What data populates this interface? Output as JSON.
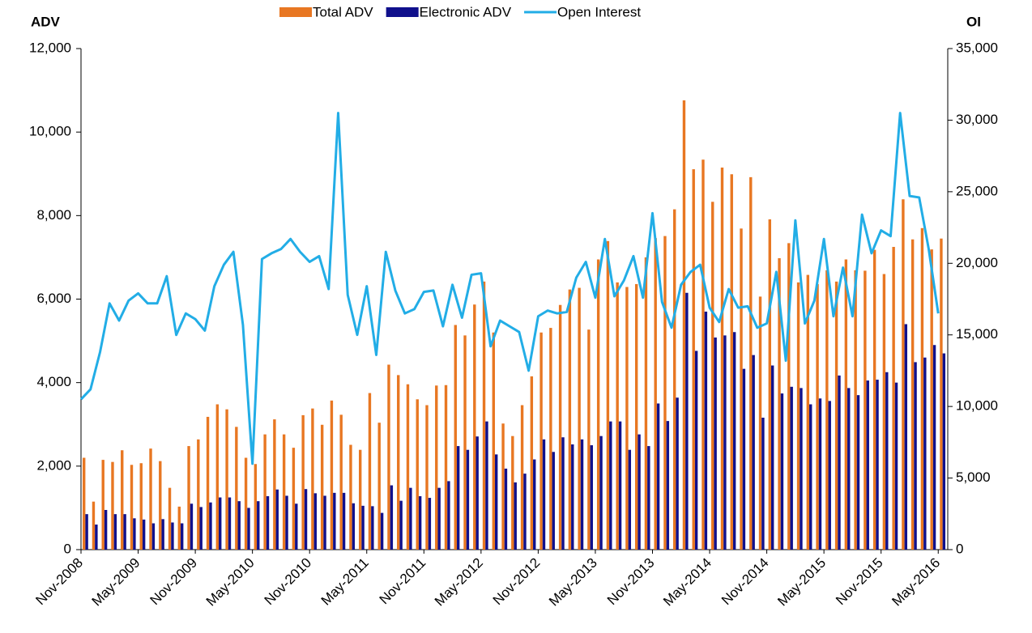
{
  "chart_data": {
    "type": "bar_line",
    "y_label": "ADV",
    "y2_label": "OI",
    "categories": [
      "Nov-2008",
      null,
      null,
      null,
      null,
      null,
      "May-2009",
      null,
      null,
      null,
      null,
      null,
      "Nov-2009",
      null,
      null,
      null,
      null,
      null,
      "May-2010",
      null,
      null,
      null,
      null,
      null,
      "Nov-2010",
      null,
      null,
      null,
      null,
      null,
      "May-2011",
      null,
      null,
      null,
      null,
      null,
      "Nov-2011",
      null,
      null,
      null,
      null,
      null,
      "May-2012",
      null,
      null,
      null,
      null,
      null,
      "Nov-2012",
      null,
      null,
      null,
      null,
      null,
      "May-2013",
      null,
      null,
      null,
      null,
      null,
      "Nov-2013",
      null,
      null,
      null,
      null,
      null,
      "May-2014",
      null,
      null,
      null,
      null,
      null,
      "Nov-2014",
      null,
      null,
      null,
      null,
      null,
      "May-2015",
      null,
      null,
      null,
      null,
      null,
      "Nov-2015",
      null,
      null,
      null,
      null,
      null,
      "May-2016"
    ],
    "series": [
      {
        "name": "Total ADV",
        "color": "#e87722",
        "kind": "bar",
        "values": [
          2200,
          1150,
          2150,
          2100,
          2380,
          2030,
          2070,
          2420,
          2120,
          1480,
          1030,
          2480,
          2640,
          3180,
          3480,
          3360,
          2940,
          2200,
          2050,
          2760,
          3120,
          2760,
          2440,
          3220,
          3380,
          2990,
          3570,
          3230,
          2510,
          2390,
          3750,
          3040,
          4430,
          4180,
          3960,
          3600,
          3460,
          3930,
          3940,
          5380,
          5130,
          5870,
          6420,
          5200,
          3020,
          2720,
          3460,
          4150,
          5200,
          5310,
          5860,
          6230,
          6270,
          5270,
          6950,
          7390,
          6400,
          6290,
          6360,
          7000,
          7460,
          7510,
          8150,
          10760,
          9110,
          9340,
          8330,
          9150,
          8990,
          7690,
          8920,
          6060,
          7910,
          6980,
          7340,
          6400,
          6580,
          6360,
          6690,
          6420,
          6950,
          6690,
          6680,
          7180,
          6600,
          7250,
          8390,
          7430,
          7700,
          7190,
          7450
        ]
      },
      {
        "name": "Electronic ADV",
        "color": "#10108c",
        "kind": "bar",
        "values": [
          850,
          600,
          950,
          850,
          850,
          750,
          720,
          630,
          730,
          650,
          630,
          1100,
          1020,
          1130,
          1250,
          1250,
          1160,
          1000,
          1160,
          1280,
          1440,
          1290,
          1100,
          1450,
          1350,
          1290,
          1360,
          1360,
          1110,
          1050,
          1040,
          880,
          1540,
          1170,
          1480,
          1280,
          1240,
          1480,
          1640,
          2480,
          2390,
          2710,
          3070,
          2280,
          1940,
          1610,
          1820,
          2160,
          2640,
          2340,
          2690,
          2520,
          2640,
          2500,
          2720,
          3070,
          3070,
          2390,
          2760,
          2480,
          3500,
          3080,
          3640,
          6150,
          4760,
          5700,
          5080,
          5130,
          5210,
          4330,
          4660,
          3160,
          4410,
          3740,
          3900,
          3870,
          3480,
          3620,
          3560,
          4170,
          3870,
          3700,
          4050,
          4070,
          4250,
          4000,
          5400,
          4490,
          4600,
          4900,
          4700
        ]
      },
      {
        "name": "Open Interest",
        "color": "#22ade6",
        "kind": "line",
        "axis": "y2",
        "values": [
          10500,
          11200,
          13800,
          17200,
          16000,
          17400,
          17900,
          17200,
          17200,
          19100,
          15000,
          16500,
          16100,
          15300,
          18400,
          19900,
          20800,
          15700,
          6000,
          20300,
          20700,
          21000,
          21700,
          20800,
          20100,
          20500,
          18200,
          30500,
          17800,
          15000,
          18400,
          13600,
          20800,
          18100,
          16500,
          16800,
          18000,
          18100,
          15600,
          18500,
          16200,
          19200,
          19300,
          14200,
          16000,
          15600,
          15200,
          12500,
          16300,
          16700,
          16500,
          16600,
          19000,
          20100,
          17600,
          21700,
          17700,
          18800,
          20500,
          17600,
          23500,
          17300,
          15500,
          18500,
          19400,
          19900,
          16900,
          15900,
          18200,
          16900,
          17000,
          15500,
          15800,
          19400,
          13200,
          23000,
          15800,
          17400,
          21700,
          16300,
          19700,
          16300,
          23400,
          20700,
          22300,
          21900,
          30500,
          24700,
          24600,
          21000,
          16500
        ]
      }
    ],
    "ylim": [
      0,
      12000
    ],
    "yticks": [
      0,
      {
        "value": 2000,
        "label": "2,000"
      },
      {
        "value": 4000,
        "label": "4,000"
      },
      {
        "value": 6000,
        "label": "6,000"
      },
      {
        "value": 8000,
        "label": "8,000"
      },
      {
        "value": 10000,
        "label": "10,000"
      },
      {
        "value": 12000,
        "label": "12,000"
      }
    ],
    "y2lim": [
      0,
      35000
    ],
    "y2ticks": [
      0,
      {
        "value": 5000,
        "label": "5,000"
      },
      {
        "value": 10000,
        "label": "10,000"
      },
      {
        "value": 15000,
        "label": "15,000"
      },
      {
        "value": 20000,
        "label": "20,000"
      },
      {
        "value": 25000,
        "label": "25,000"
      },
      {
        "value": 30000,
        "label": "30,000"
      },
      {
        "value": 35000,
        "label": "35,000"
      }
    ],
    "legend": "top"
  }
}
